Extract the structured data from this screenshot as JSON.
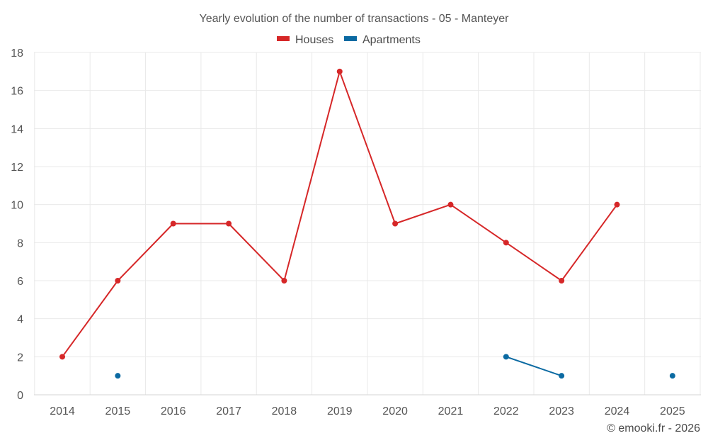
{
  "chart_data": {
    "type": "line",
    "title": "Yearly evolution of the number of transactions - 05 - Manteyer",
    "xlabel": "",
    "ylabel": "",
    "categories": [
      "2014",
      "2015",
      "2016",
      "2017",
      "2018",
      "2019",
      "2020",
      "2021",
      "2022",
      "2023",
      "2024",
      "2025"
    ],
    "ylim": [
      0,
      18
    ],
    "yticks": [
      0,
      2,
      4,
      6,
      8,
      10,
      12,
      14,
      16,
      18
    ],
    "grid": true,
    "legend_position": "top-center",
    "series": [
      {
        "name": "Houses",
        "color": "#d62728",
        "values": [
          2,
          6,
          9,
          9,
          6,
          17,
          9,
          10,
          8,
          6,
          10,
          null
        ]
      },
      {
        "name": "Apartments",
        "color": "#0b6aa2",
        "values": [
          null,
          1,
          null,
          null,
          null,
          null,
          null,
          null,
          2,
          1,
          null,
          1
        ]
      }
    ]
  },
  "footer": {
    "copyright": "© emooki.fr - 2026"
  }
}
